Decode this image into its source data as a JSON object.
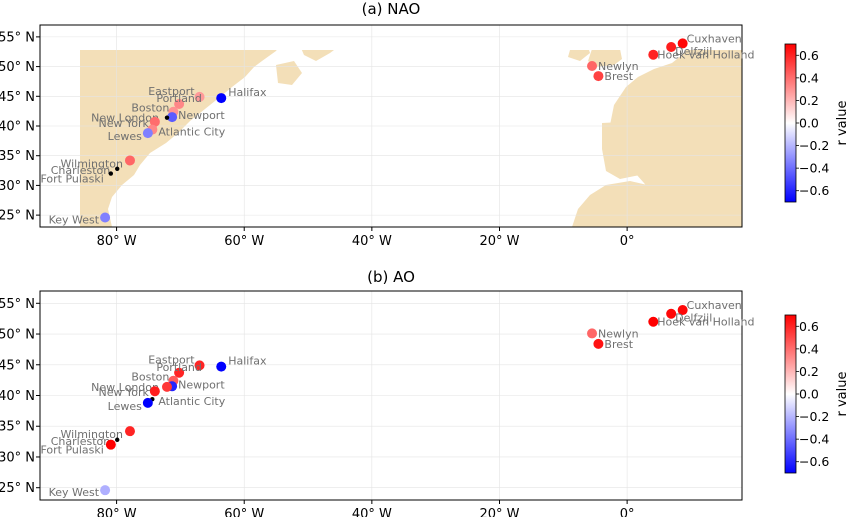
{
  "panels": [
    {
      "title": "(a) NAO"
    },
    {
      "title": "(b) AO"
    }
  ],
  "axes": {
    "lon_range": [
      -92,
      18
    ],
    "lat_range": [
      23,
      57
    ],
    "x_ticks": [
      {
        "value": -80,
        "label": "80° W"
      },
      {
        "value": -60,
        "label": "60° W"
      },
      {
        "value": -40,
        "label": "40° W"
      },
      {
        "value": -20,
        "label": "20° W"
      },
      {
        "value": 0,
        "label": "0°"
      }
    ],
    "y_ticks": [
      {
        "value": 25,
        "label": "25° N"
      },
      {
        "value": 30,
        "label": "30° N"
      },
      {
        "value": 35,
        "label": "35° N"
      },
      {
        "value": 40,
        "label": "40° N"
      },
      {
        "value": 45,
        "label": "45° N"
      },
      {
        "value": 50,
        "label": "50° N"
      },
      {
        "value": 55,
        "label": "55° N"
      }
    ]
  },
  "colorbar": {
    "label": "r value",
    "range": [
      -0.7,
      0.7
    ],
    "ticks": [
      {
        "value": 0.6,
        "label": "0.6"
      },
      {
        "value": 0.4,
        "label": "0.4"
      },
      {
        "value": 0.2,
        "label": "0.2"
      },
      {
        "value": 0.0,
        "label": "0.0"
      },
      {
        "value": -0.2,
        "label": "−0.2"
      },
      {
        "value": -0.4,
        "label": "−0.4"
      },
      {
        "value": -0.6,
        "label": "−0.6"
      }
    ]
  },
  "colors": {
    "land": "#f3dfb8",
    "positive": "#ff0000",
    "negative": "#0000ff",
    "label": "#707070"
  },
  "stations": [
    {
      "name": "Cuxhaven",
      "lon": 8.7,
      "lat": 53.9,
      "dx": 4,
      "dy": -5
    },
    {
      "name": "Delfzijl",
      "lon": 6.9,
      "lat": 53.3,
      "dx": 4,
      "dy": 4
    },
    {
      "name": "Hoek van Holland",
      "lon": 4.1,
      "lat": 52.0,
      "dx": 4,
      "dy": 0
    },
    {
      "name": "Newlyn",
      "lon": -5.5,
      "lat": 50.1,
      "dx": 6,
      "dy": 0
    },
    {
      "name": "Brest",
      "lon": -4.5,
      "lat": 48.4,
      "dx": 6,
      "dy": 0
    },
    {
      "name": "Halifax",
      "lon": -63.6,
      "lat": 44.7,
      "dx": 7,
      "dy": -6
    },
    {
      "name": "Eastport",
      "lon": -67.0,
      "lat": 44.9,
      "dx": -5,
      "dy": -6
    },
    {
      "name": "Portland",
      "lon": -70.2,
      "lat": 43.7,
      "dx": 0,
      "dy": -6
    },
    {
      "name": "Boston",
      "lon": -71.1,
      "lat": 42.4,
      "dx": -4,
      "dy": -4
    },
    {
      "name": "Newport",
      "lon": -71.3,
      "lat": 41.5,
      "dx": 6,
      "dy": -2
    },
    {
      "name": "New London",
      "lon": -72.1,
      "lat": 41.4,
      "dx": -8,
      "dy": 0
    },
    {
      "name": "New York",
      "lon": -74.0,
      "lat": 40.7,
      "dx": -6,
      "dy": 1
    },
    {
      "name": "Atlantic City",
      "lon": -74.4,
      "lat": 39.4,
      "dx": 6,
      "dy": 2
    },
    {
      "name": "Lewes",
      "lon": -75.1,
      "lat": 38.8,
      "dx": -6,
      "dy": 3
    },
    {
      "name": "Wilmington",
      "lon": -77.9,
      "lat": 34.2,
      "dx": -7,
      "dy": 3
    },
    {
      "name": "Charleston",
      "lon": -79.9,
      "lat": 32.8,
      "dx": -7,
      "dy": 1
    },
    {
      "name": "Fort Pulaski",
      "lon": -80.9,
      "lat": 32.0,
      "dx": -7,
      "dy": 5
    },
    {
      "name": "Key West",
      "lon": -81.8,
      "lat": 24.6,
      "dx": -6,
      "dy": 2
    }
  ],
  "r_values": {
    "(a) NAO": [
      0.68,
      0.62,
      0.6,
      0.42,
      0.52,
      -0.75,
      0.28,
      0.33,
      0.3,
      -0.45,
      null,
      0.4,
      0.33,
      -0.35,
      0.42,
      null,
      null,
      -0.35
    ],
    "(b) AO": [
      0.68,
      0.68,
      0.7,
      0.42,
      0.65,
      -0.78,
      0.6,
      0.6,
      0.45,
      -0.6,
      0.55,
      0.62,
      null,
      -0.72,
      0.6,
      null,
      0.7,
      -0.22
    ]
  }
}
